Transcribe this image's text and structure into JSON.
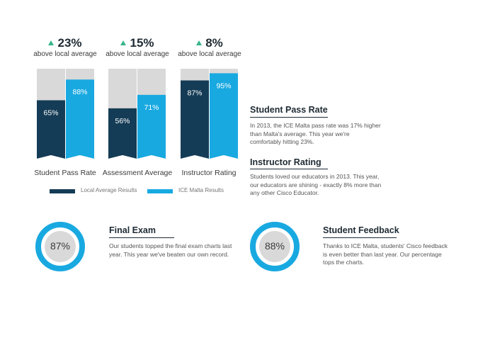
{
  "colors": {
    "local": "#153c56",
    "ice": "#19a9e1",
    "bg_bar": "#d9d9d9",
    "accent_up": "#37b58a"
  },
  "stats": [
    {
      "value": "23%",
      "sub": "above local average"
    },
    {
      "value": "15%",
      "sub": "above local average"
    },
    {
      "value": "8%",
      "sub": "above local average"
    }
  ],
  "legend": {
    "local": "Local Average Results",
    "ice": "ICE Malta Results"
  },
  "chart_data": {
    "type": "bar",
    "categories": [
      "Student Pass Rate",
      "Assessment Average",
      "Instructor Rating"
    ],
    "series": [
      {
        "name": "Local Average Results",
        "values": [
          65,
          56,
          87
        ],
        "labels": [
          "65%",
          "56%",
          "87%"
        ]
      },
      {
        "name": "ICE Malta Results",
        "values": [
          88,
          71,
          95
        ],
        "labels": [
          "88%",
          "71%",
          "95%"
        ]
      }
    ],
    "ylim": [
      0,
      100
    ]
  },
  "sections": {
    "pass_rate": {
      "title": "Student Pass Rate",
      "text": "In 2013, the ICE Malta pass rate was 17% higher than Malta's average. This year we're comfortably hitting 23%."
    },
    "instructor": {
      "title": "Instructor Rating",
      "text": "Students loved our educators in 2013. This year, our educators are shining - exactly 8% more than any other Cisco Educator."
    },
    "final_exam": {
      "title": "Final Exam",
      "text": "Our students topped the final exam charts last year. This year we've beaten our own record.",
      "percent": 87,
      "label": "87%"
    },
    "feedback": {
      "title": "Student Feedback",
      "text": "Thanks to ICE Malta, students' Cisco feedback is even better than last year. Our percentage tops the charts.",
      "percent": 88,
      "label": "88%"
    }
  }
}
